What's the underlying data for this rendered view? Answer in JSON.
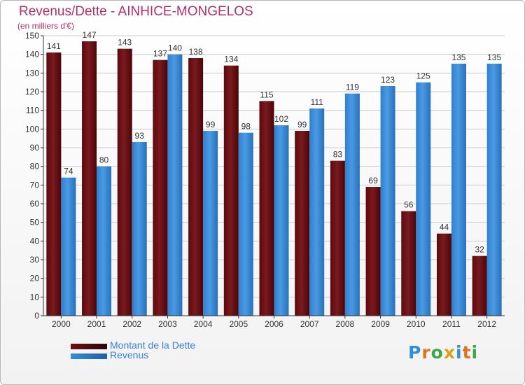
{
  "title": "Revenus/Dette - AINHICE-MONGELOS",
  "subtitle": "(en milliers d'€)",
  "colors": {
    "title": "#b0306a",
    "dette": "#6e0f14",
    "revenus": "#3a8ad6",
    "grid": "#cccccc",
    "axis": "#333333"
  },
  "legend": [
    {
      "label": "Montant de la Dette",
      "color": "#6e0f14"
    },
    {
      "label": "Revenus",
      "color": "#3a8ad6"
    }
  ],
  "logo": {
    "text": "Proxiti"
  },
  "chart_data": {
    "type": "bar",
    "categories": [
      "2000",
      "2001",
      "2002",
      "2003",
      "2004",
      "2005",
      "2006",
      "2007",
      "2008",
      "2009",
      "2010",
      "2011",
      "2012"
    ],
    "series": [
      {
        "name": "Montant de la Dette",
        "values": [
          141,
          147,
          143,
          137,
          138,
          134,
          115,
          99,
          83,
          69,
          56,
          44,
          32
        ]
      },
      {
        "name": "Revenus",
        "values": [
          74,
          80,
          93,
          140,
          99,
          98,
          102,
          111,
          119,
          123,
          125,
          135,
          135
        ]
      }
    ],
    "ylim": [
      0,
      150
    ],
    "yticks": [
      0,
      10,
      20,
      30,
      40,
      50,
      60,
      70,
      80,
      90,
      100,
      110,
      120,
      130,
      140,
      150
    ],
    "grid": true,
    "legend_position": "bottom-left"
  }
}
